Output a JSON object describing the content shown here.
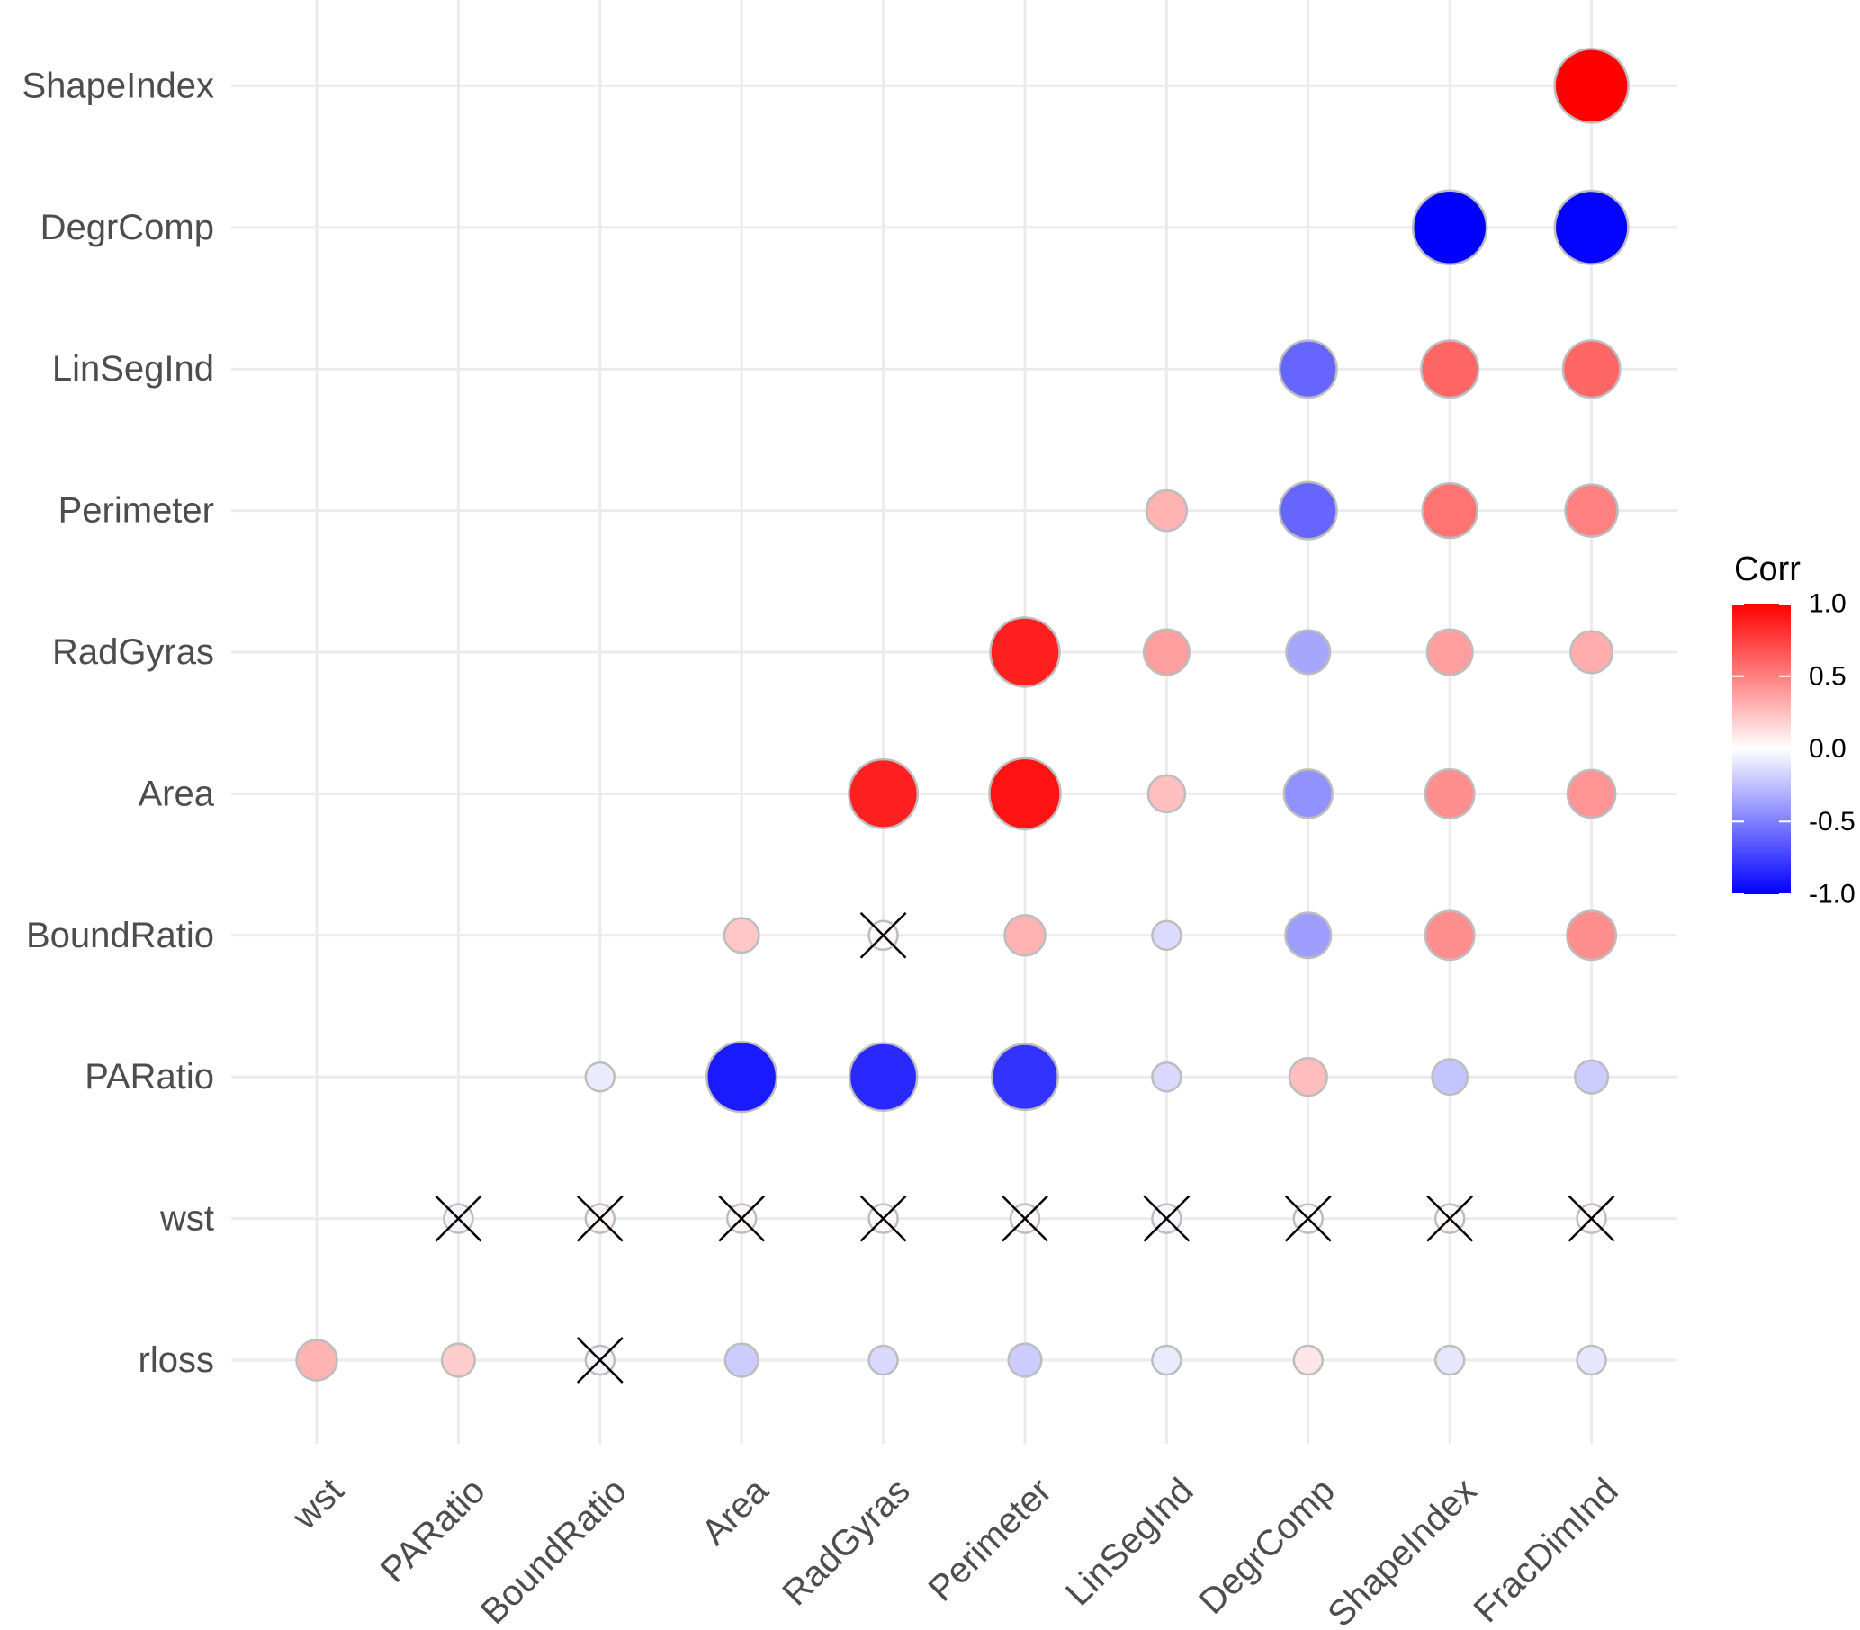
{
  "chart_data": {
    "type": "heatmap",
    "subtype": "correlation-circle",
    "title": "",
    "xlabel": "",
    "ylabel": "",
    "x_categories": [
      "wst",
      "PARatio",
      "BoundRatio",
      "Area",
      "RadGyras",
      "Perimeter",
      "LinSegInd",
      "DegrComp",
      "ShapeIndex",
      "FracDimInd"
    ],
    "y_categories": [
      "rloss",
      "wst",
      "PARatio",
      "BoundRatio",
      "Area",
      "RadGyras",
      "Perimeter",
      "LinSegInd",
      "DegrComp",
      "ShapeIndex"
    ],
    "cells": [
      {
        "y": "ShapeIndex",
        "x": "FracDimInd",
        "value": 1.0,
        "insignificant": false
      },
      {
        "y": "DegrComp",
        "x": "ShapeIndex",
        "value": -1.0,
        "insignificant": false
      },
      {
        "y": "DegrComp",
        "x": "FracDimInd",
        "value": -0.99,
        "insignificant": false
      },
      {
        "y": "LinSegInd",
        "x": "DegrComp",
        "value": -0.6,
        "insignificant": false
      },
      {
        "y": "LinSegInd",
        "x": "ShapeIndex",
        "value": 0.6,
        "insignificant": false
      },
      {
        "y": "LinSegInd",
        "x": "FracDimInd",
        "value": 0.6,
        "insignificant": false
      },
      {
        "y": "Perimeter",
        "x": "LinSegInd",
        "value": 0.3,
        "insignificant": false
      },
      {
        "y": "Perimeter",
        "x": "DegrComp",
        "value": -0.6,
        "insignificant": false
      },
      {
        "y": "Perimeter",
        "x": "ShapeIndex",
        "value": 0.55,
        "insignificant": false
      },
      {
        "y": "Perimeter",
        "x": "FracDimInd",
        "value": 0.5,
        "insignificant": false
      },
      {
        "y": "RadGyras",
        "x": "Perimeter",
        "value": 0.88,
        "insignificant": false
      },
      {
        "y": "RadGyras",
        "x": "LinSegInd",
        "value": 0.38,
        "insignificant": false
      },
      {
        "y": "RadGyras",
        "x": "DegrComp",
        "value": -0.35,
        "insignificant": false
      },
      {
        "y": "RadGyras",
        "x": "ShapeIndex",
        "value": 0.38,
        "insignificant": false
      },
      {
        "y": "RadGyras",
        "x": "FracDimInd",
        "value": 0.32,
        "insignificant": false
      },
      {
        "y": "Area",
        "x": "RadGyras",
        "value": 0.87,
        "insignificant": false
      },
      {
        "y": "Area",
        "x": "Perimeter",
        "value": 0.93,
        "insignificant": false
      },
      {
        "y": "Area",
        "x": "LinSegInd",
        "value": 0.25,
        "insignificant": false
      },
      {
        "y": "Area",
        "x": "DegrComp",
        "value": -0.43,
        "insignificant": false
      },
      {
        "y": "Area",
        "x": "ShapeIndex",
        "value": 0.44,
        "insignificant": false
      },
      {
        "y": "Area",
        "x": "FracDimInd",
        "value": 0.42,
        "insignificant": false
      },
      {
        "y": "BoundRatio",
        "x": "Area",
        "value": 0.22,
        "insignificant": false
      },
      {
        "y": "BoundRatio",
        "x": "RadGyras",
        "value": 0.02,
        "insignificant": true
      },
      {
        "y": "BoundRatio",
        "x": "Perimeter",
        "value": 0.3,
        "insignificant": false
      },
      {
        "y": "BoundRatio",
        "x": "LinSegInd",
        "value": -0.14,
        "insignificant": false
      },
      {
        "y": "BoundRatio",
        "x": "DegrComp",
        "value": -0.38,
        "insignificant": false
      },
      {
        "y": "BoundRatio",
        "x": "ShapeIndex",
        "value": 0.44,
        "insignificant": false
      },
      {
        "y": "BoundRatio",
        "x": "FracDimInd",
        "value": 0.44,
        "insignificant": false
      },
      {
        "y": "PARatio",
        "x": "BoundRatio",
        "value": -0.08,
        "insignificant": false
      },
      {
        "y": "PARatio",
        "x": "Area",
        "value": -0.9,
        "insignificant": false
      },
      {
        "y": "PARatio",
        "x": "RadGyras",
        "value": -0.84,
        "insignificant": false
      },
      {
        "y": "PARatio",
        "x": "Perimeter",
        "value": -0.8,
        "insignificant": false
      },
      {
        "y": "PARatio",
        "x": "LinSegInd",
        "value": -0.15,
        "insignificant": false
      },
      {
        "y": "PARatio",
        "x": "DegrComp",
        "value": 0.26,
        "insignificant": false
      },
      {
        "y": "PARatio",
        "x": "ShapeIndex",
        "value": -0.23,
        "insignificant": false
      },
      {
        "y": "PARatio",
        "x": "FracDimInd",
        "value": -0.2,
        "insignificant": false
      },
      {
        "y": "wst",
        "x": "PARatio",
        "value": -0.04,
        "insignificant": true
      },
      {
        "y": "wst",
        "x": "BoundRatio",
        "value": 0.03,
        "insignificant": true
      },
      {
        "y": "wst",
        "x": "Area",
        "value": 0.03,
        "insignificant": true
      },
      {
        "y": "wst",
        "x": "RadGyras",
        "value": 0.02,
        "insignificant": true
      },
      {
        "y": "wst",
        "x": "Perimeter",
        "value": 0.02,
        "insignificant": true
      },
      {
        "y": "wst",
        "x": "LinSegInd",
        "value": -0.03,
        "insignificant": true
      },
      {
        "y": "wst",
        "x": "DegrComp",
        "value": 0.01,
        "insignificant": true
      },
      {
        "y": "wst",
        "x": "ShapeIndex",
        "value": 0.02,
        "insignificant": true
      },
      {
        "y": "wst",
        "x": "FracDimInd",
        "value": 0.02,
        "insignificant": true
      },
      {
        "y": "rloss",
        "x": "wst",
        "value": 0.3,
        "insignificant": false
      },
      {
        "y": "rloss",
        "x": "PARatio",
        "value": 0.2,
        "insignificant": false
      },
      {
        "y": "rloss",
        "x": "BoundRatio",
        "value": -0.04,
        "insignificant": true
      },
      {
        "y": "rloss",
        "x": "Area",
        "value": -0.2,
        "insignificant": false
      },
      {
        "y": "rloss",
        "x": "RadGyras",
        "value": -0.15,
        "insignificant": false
      },
      {
        "y": "rloss",
        "x": "Perimeter",
        "value": -0.2,
        "insignificant": false
      },
      {
        "y": "rloss",
        "x": "LinSegInd",
        "value": -0.08,
        "insignificant": false
      },
      {
        "y": "rloss",
        "x": "DegrComp",
        "value": 0.1,
        "insignificant": false
      },
      {
        "y": "rloss",
        "x": "ShapeIndex",
        "value": -0.1,
        "insignificant": false
      },
      {
        "y": "rloss",
        "x": "FracDimInd",
        "value": -0.1,
        "insignificant": false
      }
    ],
    "color_scale": {
      "low": "#0000FF",
      "mid": "#FFFFFF",
      "high": "#FF0000",
      "limits": [
        -1,
        1
      ]
    },
    "legend": {
      "title": "Corr",
      "position": "right",
      "ticks": [
        "1.0",
        "0.5",
        "0.0",
        "-0.5",
        "-1.0"
      ],
      "tick_values": [
        1.0,
        0.5,
        0.0,
        -0.5,
        -1.0
      ]
    },
    "grid": true,
    "insignificant_marker": "X"
  }
}
